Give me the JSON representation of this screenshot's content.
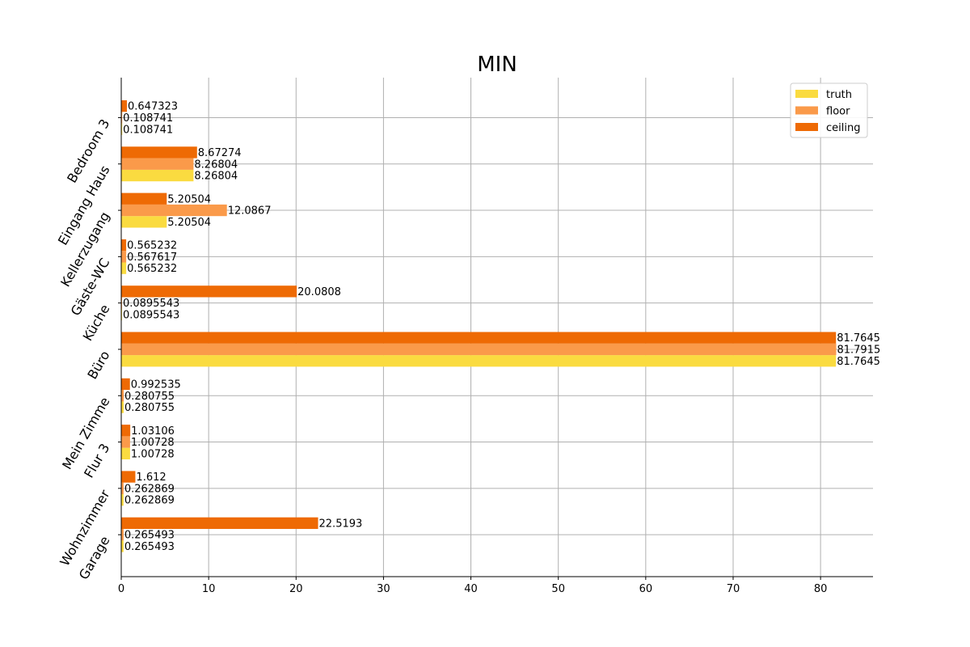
{
  "chart_data": {
    "type": "bar",
    "orientation": "horizontal",
    "title": "MIN",
    "xlabel": "",
    "ylabel": "",
    "xlim": [
      0,
      86
    ],
    "xticks": [
      0,
      10,
      20,
      30,
      40,
      50,
      60,
      70,
      80
    ],
    "grid": true,
    "legend_position": "top-right",
    "categories": [
      "Bedroom 3",
      "Eingang Haus",
      "Kellerzugang",
      "Gäste-WC",
      "Küche",
      "Büro",
      "Mein Zimme",
      "Flur 3",
      "Wohnzimmer",
      "Garage"
    ],
    "series": [
      {
        "name": "truth",
        "color": "#fadb40",
        "values": [
          0.108741,
          8.26804,
          5.20504,
          0.565232,
          0.0895543,
          81.7645,
          0.280755,
          1.00728,
          0.262869,
          0.265493
        ],
        "labels": [
          "0.108741",
          "8.26804",
          "5.20504",
          "0.565232",
          "0.0895543",
          "81.7645",
          "0.280755",
          "1.00728",
          "0.262869",
          "0.265493"
        ]
      },
      {
        "name": "floor",
        "color": "#fa9a4a",
        "values": [
          0.108741,
          8.26804,
          12.0867,
          0.567617,
          0.0895543,
          81.7915,
          0.280755,
          1.00728,
          0.262869,
          0.265493
        ],
        "labels": [
          "0.108741",
          "8.26804",
          "12.0867",
          "0.567617",
          "0.0895543",
          "81.7915",
          "0.280755",
          "1.00728",
          "0.262869",
          "0.265493"
        ]
      },
      {
        "name": "ceiling",
        "color": "#ee6a04",
        "values": [
          0.647323,
          8.67274,
          5.20504,
          0.565232,
          20.0808,
          81.7645,
          0.992535,
          1.03106,
          1.612,
          22.5193
        ],
        "labels": [
          "0.647323",
          "8.67274",
          "5.20504",
          "0.565232",
          "20.0808",
          "81.7645",
          "0.992535",
          "1.03106",
          "1.612",
          "22.5193"
        ]
      }
    ]
  }
}
